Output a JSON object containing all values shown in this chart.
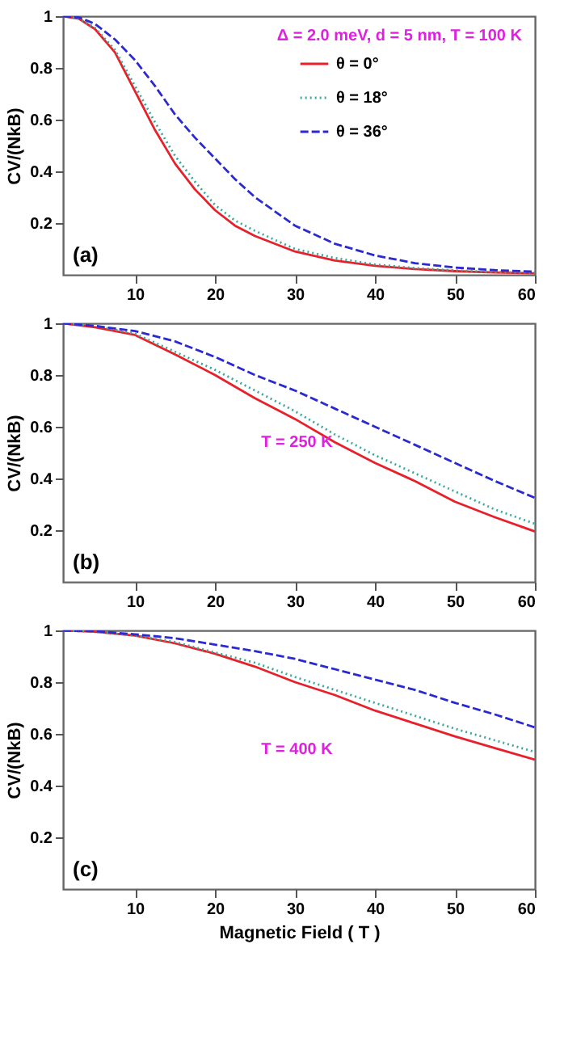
{
  "chart_data": [
    {
      "type": "line",
      "ylabel": "CV/(NkB)",
      "x": [
        1,
        3,
        5,
        7.5,
        10,
        12.5,
        15,
        17.5,
        20,
        22.5,
        25,
        30,
        35,
        40,
        45,
        50,
        55,
        60
      ],
      "xlim": [
        1,
        60
      ],
      "xticks": [
        10,
        20,
        30,
        40,
        50,
        60
      ],
      "ylim": [
        0,
        1
      ],
      "yticks": [
        0.2,
        0.4,
        0.6,
        0.8,
        1
      ],
      "legend": "top right",
      "annotations": [
        "(a)",
        "Δ = 2.0 meV, d = 5 nm, T = 100 K"
      ],
      "series": [
        {
          "name": "θ = 0°",
          "color": "#e8202a",
          "line_style": "solid",
          "values": [
            1,
            0.99,
            0.95,
            0.86,
            0.71,
            0.56,
            0.43,
            0.33,
            0.25,
            0.19,
            0.15,
            0.09,
            0.055,
            0.035,
            0.022,
            0.014,
            0.009,
            0.006
          ]
        },
        {
          "name": "θ = 18°",
          "color": "#3aa89a",
          "line_style": "dotted",
          "values": [
            1,
            0.99,
            0.955,
            0.87,
            0.73,
            0.59,
            0.46,
            0.36,
            0.27,
            0.21,
            0.17,
            0.1,
            0.065,
            0.04,
            0.026,
            0.017,
            0.011,
            0.008
          ]
        },
        {
          "name": "θ = 36°",
          "color": "#2a2ad0",
          "line_style": "dashed",
          "values": [
            1,
            0.995,
            0.97,
            0.91,
            0.83,
            0.73,
            0.62,
            0.53,
            0.45,
            0.37,
            0.3,
            0.19,
            0.12,
            0.075,
            0.045,
            0.028,
            0.018,
            0.012
          ]
        }
      ]
    },
    {
      "type": "line",
      "ylabel": "CV/(NkB)",
      "x": [
        1,
        5,
        10,
        15,
        20,
        25,
        30,
        35,
        40,
        45,
        50,
        55,
        60
      ],
      "xlim": [
        1,
        60
      ],
      "xticks": [
        10,
        20,
        30,
        40,
        50,
        60
      ],
      "ylim": [
        0,
        1
      ],
      "yticks": [
        0.2,
        0.4,
        0.6,
        0.8,
        1
      ],
      "annotations": [
        "(b)",
        "T = 250 K"
      ],
      "series": [
        {
          "color": "#e8202a",
          "line_style": "solid",
          "values": [
            1,
            0.985,
            0.955,
            0.88,
            0.8,
            0.71,
            0.63,
            0.54,
            0.46,
            0.39,
            0.31,
            0.25,
            0.195
          ]
        },
        {
          "color": "#3aa89a",
          "line_style": "dotted",
          "values": [
            1,
            0.99,
            0.96,
            0.89,
            0.82,
            0.74,
            0.66,
            0.57,
            0.49,
            0.42,
            0.35,
            0.28,
            0.225
          ]
        },
        {
          "color": "#2a2ad0",
          "line_style": "dashed",
          "values": [
            1,
            0.99,
            0.97,
            0.93,
            0.87,
            0.8,
            0.74,
            0.67,
            0.6,
            0.53,
            0.46,
            0.39,
            0.325
          ]
        }
      ]
    },
    {
      "type": "line",
      "xlabel": "Magnetic Field ( T )",
      "ylabel": "CV/(NkB)",
      "x": [
        1,
        5,
        10,
        15,
        20,
        25,
        30,
        35,
        40,
        45,
        50,
        55,
        60
      ],
      "xlim": [
        1,
        60
      ],
      "xticks": [
        10,
        20,
        30,
        40,
        50,
        60
      ],
      "ylim": [
        0,
        1
      ],
      "yticks": [
        0.2,
        0.4,
        0.6,
        0.8,
        1
      ],
      "annotations": [
        "(c)",
        "T = 400 K"
      ],
      "series": [
        {
          "color": "#e8202a",
          "line_style": "solid",
          "values": [
            1,
            0.995,
            0.98,
            0.95,
            0.91,
            0.86,
            0.8,
            0.75,
            0.69,
            0.64,
            0.59,
            0.545,
            0.5
          ]
        },
        {
          "color": "#3aa89a",
          "line_style": "dotted",
          "values": [
            1,
            0.995,
            0.98,
            0.955,
            0.915,
            0.875,
            0.82,
            0.77,
            0.72,
            0.67,
            0.62,
            0.575,
            0.53
          ]
        },
        {
          "color": "#2a2ad0",
          "line_style": "dashed",
          "values": [
            1,
            0.997,
            0.985,
            0.97,
            0.945,
            0.92,
            0.89,
            0.85,
            0.81,
            0.77,
            0.72,
            0.675,
            0.625
          ]
        }
      ]
    }
  ]
}
